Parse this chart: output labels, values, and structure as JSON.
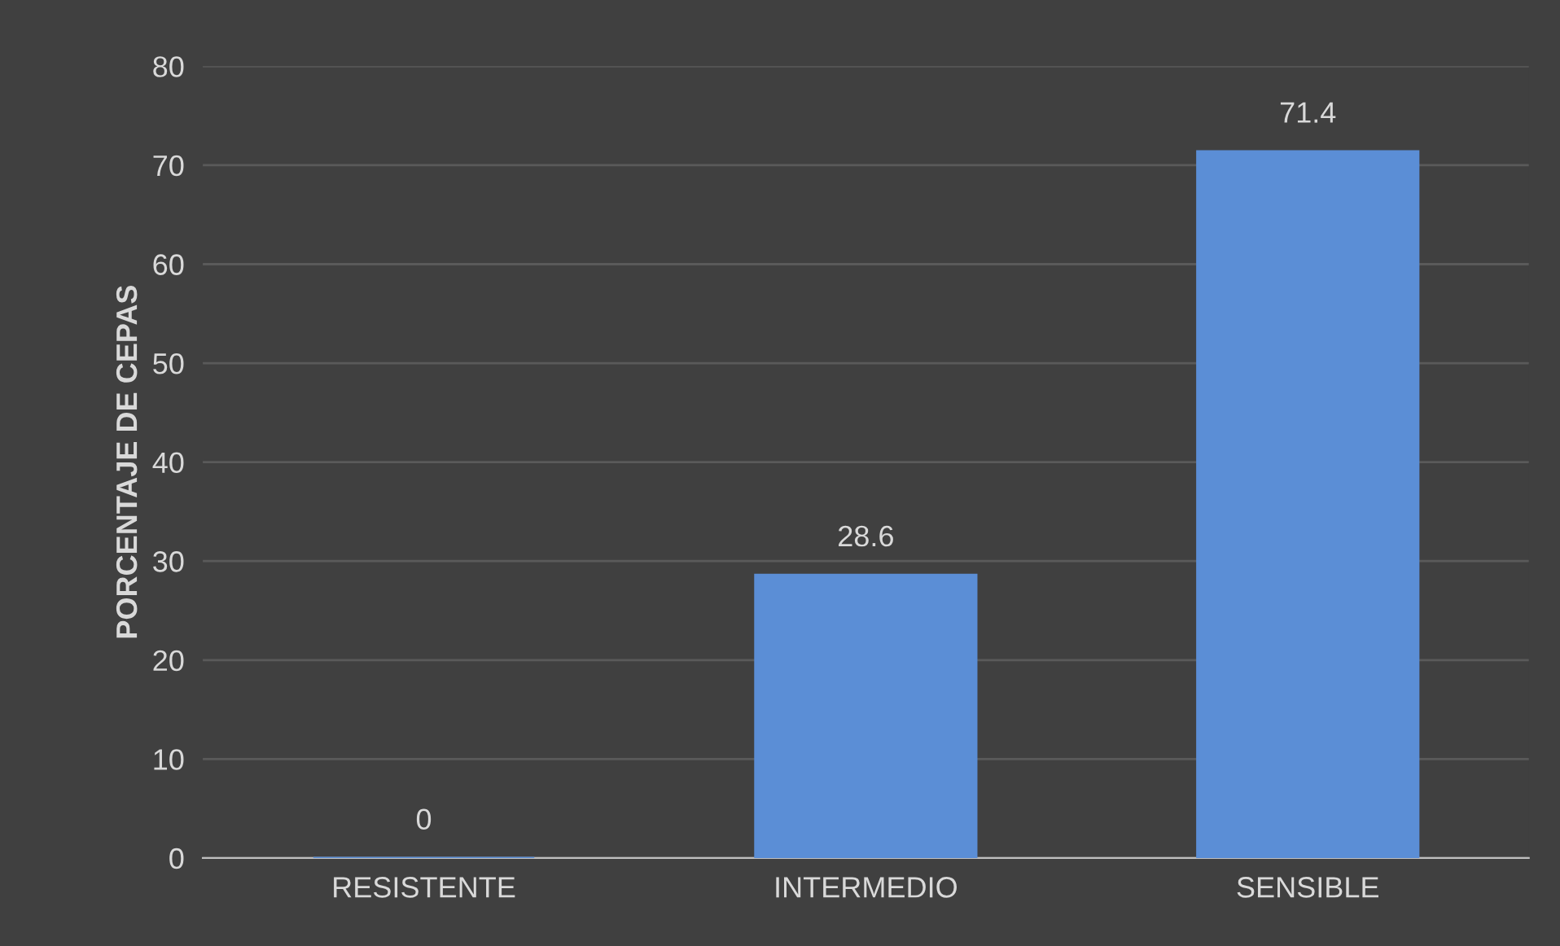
{
  "chart_data": {
    "type": "bar",
    "ylabel": "PORCENTAJE DE CEPAS",
    "categories": [
      "RESISTENTE",
      "INTERMEDIO",
      "SENSIBLE"
    ],
    "values": [
      0,
      28.6,
      71.4
    ],
    "color": "#5b8ed6",
    "ylim": [
      0,
      80
    ],
    "yticks": [
      0,
      10,
      20,
      30,
      40,
      50,
      60,
      70,
      80
    ],
    "grid": "y",
    "data_labels": true
  }
}
